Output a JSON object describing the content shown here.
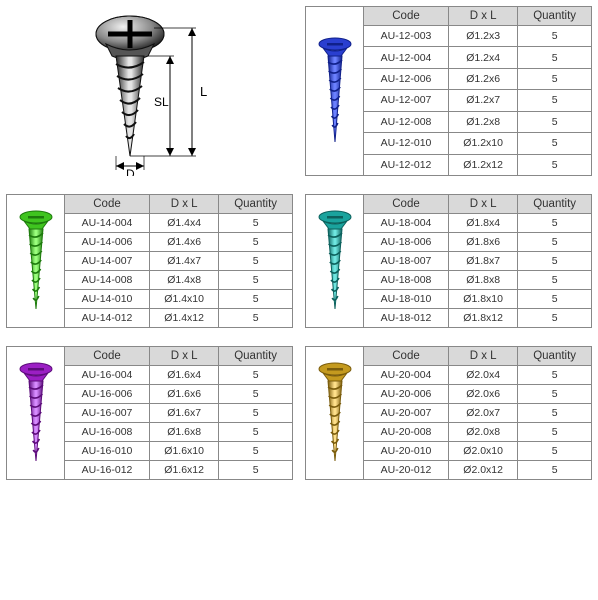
{
  "columns": [
    "Code",
    "D x L",
    "Quantity"
  ],
  "diagram": {
    "labels": {
      "SL": "SL",
      "L": "L",
      "D": "D"
    }
  },
  "groups": [
    {
      "id": "g12",
      "color": "#2a3fd0",
      "highlight": "#6b80ff",
      "shadow": "#10208a",
      "rows": [
        {
          "code": "AU-12-003",
          "dxl": "Ø1.2x3",
          "qty": "5"
        },
        {
          "code": "AU-12-004",
          "dxl": "Ø1.2x4",
          "qty": "5"
        },
        {
          "code": "AU-12-006",
          "dxl": "Ø1.2x6",
          "qty": "5"
        },
        {
          "code": "AU-12-007",
          "dxl": "Ø1.2x7",
          "qty": "5"
        },
        {
          "code": "AU-12-008",
          "dxl": "Ø1.2x8",
          "qty": "5"
        },
        {
          "code": "AU-12-010",
          "dxl": "Ø1.2x10",
          "qty": "5"
        },
        {
          "code": "AU-12-012",
          "dxl": "Ø1.2x12",
          "qty": "5"
        }
      ]
    },
    {
      "id": "g14",
      "color": "#3fc41f",
      "highlight": "#9bff7d",
      "shadow": "#1d7a0c",
      "rows": [
        {
          "code": "AU-14-004",
          "dxl": "Ø1.4x4",
          "qty": "5"
        },
        {
          "code": "AU-14-006",
          "dxl": "Ø1.4x6",
          "qty": "5"
        },
        {
          "code": "AU-14-007",
          "dxl": "Ø1.4x7",
          "qty": "5"
        },
        {
          "code": "AU-14-008",
          "dxl": "Ø1.4x8",
          "qty": "5"
        },
        {
          "code": "AU-14-010",
          "dxl": "Ø1.4x10",
          "qty": "5"
        },
        {
          "code": "AU-14-012",
          "dxl": "Ø1.4x12",
          "qty": "5"
        }
      ]
    },
    {
      "id": "g18",
      "color": "#1aa39d",
      "highlight": "#6fe6e0",
      "shadow": "#0c605c",
      "rows": [
        {
          "code": "AU-18-004",
          "dxl": "Ø1.8x4",
          "qty": "5"
        },
        {
          "code": "AU-18-006",
          "dxl": "Ø1.8x6",
          "qty": "5"
        },
        {
          "code": "AU-18-007",
          "dxl": "Ø1.8x7",
          "qty": "5"
        },
        {
          "code": "AU-18-008",
          "dxl": "Ø1.8x8",
          "qty": "5"
        },
        {
          "code": "AU-18-010",
          "dxl": "Ø1.8x10",
          "qty": "5"
        },
        {
          "code": "AU-18-012",
          "dxl": "Ø1.8x12",
          "qty": "5"
        }
      ]
    },
    {
      "id": "g16",
      "color": "#9b1fc4",
      "highlight": "#d68bff",
      "shadow": "#5c0c7a",
      "rows": [
        {
          "code": "AU-16-004",
          "dxl": "Ø1.6x4",
          "qty": "5"
        },
        {
          "code": "AU-16-006",
          "dxl": "Ø1.6x6",
          "qty": "5"
        },
        {
          "code": "AU-16-007",
          "dxl": "Ø1.6x7",
          "qty": "5"
        },
        {
          "code": "AU-16-008",
          "dxl": "Ø1.6x8",
          "qty": "5"
        },
        {
          "code": "AU-16-010",
          "dxl": "Ø1.6x10",
          "qty": "5"
        },
        {
          "code": "AU-16-012",
          "dxl": "Ø1.6x12",
          "qty": "5"
        }
      ]
    },
    {
      "id": "g20",
      "color": "#c49a1f",
      "highlight": "#ffe08b",
      "shadow": "#7a5c0c",
      "rows": [
        {
          "code": "AU-20-004",
          "dxl": "Ø2.0x4",
          "qty": "5"
        },
        {
          "code": "AU-20-006",
          "dxl": "Ø2.0x6",
          "qty": "5"
        },
        {
          "code": "AU-20-007",
          "dxl": "Ø2.0x7",
          "qty": "5"
        },
        {
          "code": "AU-20-008",
          "dxl": "Ø2.0x8",
          "qty": "5"
        },
        {
          "code": "AU-20-010",
          "dxl": "Ø2.0x10",
          "qty": "5"
        },
        {
          "code": "AU-20-012",
          "dxl": "Ø2.0x12",
          "qty": "5"
        }
      ]
    }
  ]
}
